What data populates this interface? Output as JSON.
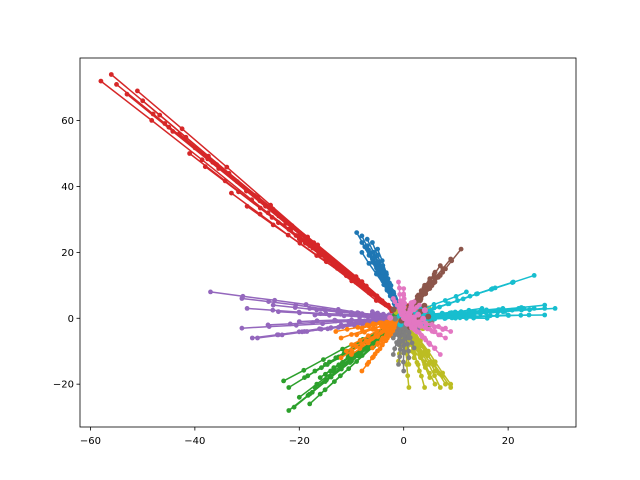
{
  "chart_data": {
    "type": "line",
    "title": "",
    "xlabel": "",
    "ylabel": "",
    "xlim": [
      -62,
      33
    ],
    "ylim": [
      -33,
      79
    ],
    "grid": false,
    "legend": "none",
    "x_ticks": [
      {
        "value": -60,
        "label": "−60"
      },
      {
        "value": -40,
        "label": "−40"
      },
      {
        "value": -20,
        "label": "−20"
      },
      {
        "value": 0,
        "label": "0"
      },
      {
        "value": 20,
        "label": "20"
      }
    ],
    "y_ticks": [
      {
        "value": -20,
        "label": "−20"
      },
      {
        "value": 0,
        "label": "0"
      },
      {
        "value": 20,
        "label": "20"
      },
      {
        "value": 40,
        "label": "40"
      },
      {
        "value": 60,
        "label": "60"
      }
    ],
    "series": [
      {
        "color": "#1f77b4",
        "endpoints": [
          [
            -9,
            26
          ],
          [
            -8,
            25
          ],
          [
            -7,
            24
          ],
          [
            -6,
            23
          ],
          [
            -8,
            23
          ],
          [
            -7,
            21
          ],
          [
            -6,
            20
          ],
          [
            -5,
            19
          ],
          [
            -8,
            20
          ],
          [
            -6,
            18
          ],
          [
            -5,
            17
          ],
          [
            -4,
            16
          ],
          [
            -7,
            22
          ],
          [
            -5,
            21
          ],
          [
            -6,
            17
          ],
          [
            -4,
            14
          ],
          [
            -5,
            15
          ],
          [
            -3,
            12
          ]
        ]
      },
      {
        "color": "#d62728",
        "endpoints": [
          [
            -58,
            72
          ],
          [
            -56,
            74
          ],
          [
            -55,
            71
          ],
          [
            -53,
            68
          ],
          [
            -51,
            69
          ],
          [
            -50,
            66
          ],
          [
            -48,
            62
          ],
          [
            -45,
            58
          ],
          [
            -43,
            56
          ],
          [
            -41,
            50
          ],
          [
            -38,
            46
          ],
          [
            -33,
            38
          ],
          [
            -30,
            34
          ],
          [
            -26,
            32
          ],
          [
            -24,
            29
          ],
          [
            -22,
            27
          ],
          [
            -20,
            25
          ],
          [
            -18,
            22
          ],
          [
            -16,
            20
          ],
          [
            -14,
            18
          ]
        ]
      },
      {
        "color": "#9467bd",
        "endpoints": [
          [
            -37,
            8
          ],
          [
            -31,
            6
          ],
          [
            -25,
            4
          ],
          [
            -18,
            3
          ],
          [
            -12,
            2
          ],
          [
            -30,
            3
          ],
          [
            -24,
            2
          ],
          [
            -17,
            1
          ],
          [
            -31,
            -3
          ],
          [
            -26,
            -2
          ],
          [
            -20,
            -1
          ],
          [
            -29,
            -6
          ],
          [
            -28,
            -6
          ],
          [
            -24,
            -5
          ],
          [
            -19,
            -4
          ],
          [
            -14,
            -3
          ],
          [
            -9,
            -1
          ],
          [
            -10,
            1
          ],
          [
            -6,
            2
          ],
          [
            -12,
            -2
          ]
        ]
      },
      {
        "color": "#2ca02c",
        "endpoints": [
          [
            -22,
            -28
          ],
          [
            -21,
            -27
          ],
          [
            -20,
            -24
          ],
          [
            -18,
            -23
          ],
          [
            -23,
            -19
          ],
          [
            -22,
            -21
          ],
          [
            -17,
            -21
          ],
          [
            -16,
            -18
          ],
          [
            -15,
            -17
          ],
          [
            -14,
            -16
          ],
          [
            -19,
            -18
          ],
          [
            -17,
            -16
          ],
          [
            -15,
            -14
          ],
          [
            -13,
            -12
          ],
          [
            -11,
            -10
          ],
          [
            -18,
            -26
          ],
          [
            -16,
            -23
          ],
          [
            -12,
            -15
          ],
          [
            -10,
            -13
          ],
          [
            -8,
            -9
          ]
        ]
      },
      {
        "color": "#ff7f0e",
        "endpoints": [
          [
            -8,
            -16
          ],
          [
            -7,
            -14
          ],
          [
            -6,
            -12
          ],
          [
            -11,
            -10
          ],
          [
            -10,
            -8
          ],
          [
            -12,
            -6
          ],
          [
            -13,
            -4
          ],
          [
            -9,
            -5
          ],
          [
            -8,
            -3
          ],
          [
            -7,
            -2
          ],
          [
            -6,
            -9
          ],
          [
            -5,
            -8
          ],
          [
            -4,
            -6
          ],
          [
            -3,
            -5
          ],
          [
            -2,
            -4
          ],
          [
            -3,
            -3
          ],
          [
            -2,
            -2
          ],
          [
            -1,
            -1
          ],
          [
            -12,
            -12
          ],
          [
            -10,
            -11
          ]
        ]
      },
      {
        "color": "#bcbd22",
        "endpoints": [
          [
            1,
            -21
          ],
          [
            4,
            -21
          ],
          [
            6,
            -20
          ],
          [
            7,
            -21
          ],
          [
            9,
            -21
          ],
          [
            8,
            -20
          ],
          [
            5,
            -18
          ],
          [
            3,
            -16
          ],
          [
            1,
            -14
          ],
          [
            -1,
            -13
          ],
          [
            6,
            -16
          ],
          [
            2,
            -12
          ],
          [
            1,
            -10
          ],
          [
            0,
            -8
          ],
          [
            7,
            -17
          ],
          [
            9,
            -20
          ],
          [
            4,
            -14
          ],
          [
            3,
            -11
          ],
          [
            2,
            -9
          ],
          [
            1,
            -7
          ]
        ]
      },
      {
        "color": "#7f7f7f",
        "endpoints": [
          [
            0,
            -16
          ],
          [
            -1,
            -14
          ],
          [
            -2,
            -11
          ],
          [
            1,
            -12
          ],
          [
            0,
            -10
          ],
          [
            -1,
            -8
          ],
          [
            2,
            -9
          ],
          [
            1,
            -6
          ],
          [
            0,
            -4
          ],
          [
            -2,
            -6
          ],
          [
            -1,
            -5
          ],
          [
            0,
            -3
          ]
        ]
      },
      {
        "color": "#17becf",
        "endpoints": [
          [
            25,
            13
          ],
          [
            21,
            11
          ],
          [
            17,
            9
          ],
          [
            12,
            8
          ],
          [
            29,
            3
          ],
          [
            27,
            3
          ],
          [
            25,
            3
          ],
          [
            22,
            3
          ],
          [
            19,
            2
          ],
          [
            15,
            2
          ],
          [
            27,
            1
          ],
          [
            24,
            1
          ],
          [
            20,
            1
          ],
          [
            16,
            0
          ],
          [
            12,
            0
          ],
          [
            27,
            4
          ],
          [
            23,
            3
          ],
          [
            19,
            3
          ],
          [
            15,
            3
          ],
          [
            11,
            2
          ]
        ]
      },
      {
        "color": "#8c564b",
        "endpoints": [
          [
            11,
            21
          ],
          [
            9,
            18
          ],
          [
            7,
            16
          ],
          [
            6,
            14
          ],
          [
            5,
            12
          ],
          [
            4,
            10
          ],
          [
            8,
            15
          ],
          [
            7,
            13
          ],
          [
            6,
            11
          ],
          [
            5,
            9
          ],
          [
            4,
            8
          ],
          [
            3,
            6
          ]
        ]
      },
      {
        "color": "#e377c2",
        "endpoints": [
          [
            7,
            -11
          ],
          [
            6,
            -9
          ],
          [
            5,
            -8
          ],
          [
            4,
            -6
          ],
          [
            8,
            -6
          ],
          [
            7,
            -5
          ],
          [
            6,
            -4
          ],
          [
            9,
            -4
          ],
          [
            8,
            -3
          ],
          [
            -1,
            11
          ],
          [
            0,
            9
          ],
          [
            0,
            7
          ],
          [
            -2,
            6
          ],
          [
            -1,
            4
          ],
          [
            2,
            5
          ],
          [
            3,
            4
          ]
        ]
      }
    ]
  }
}
